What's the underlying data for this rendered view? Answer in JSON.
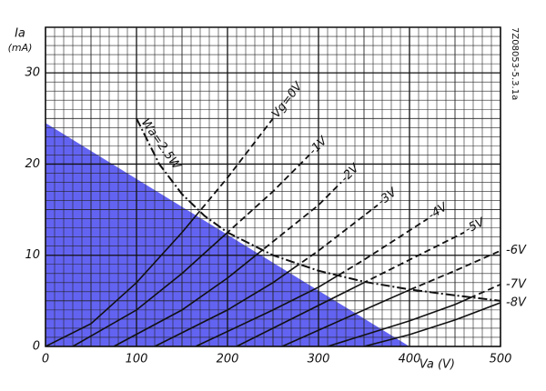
{
  "chart_data": {
    "type": "line",
    "x_label": "Va (V)",
    "y_label": "Ia",
    "y_unit": "(mA)",
    "side_note": "7Z08053-5.3.1a",
    "xlim": [
      0,
      500
    ],
    "ylim": [
      0,
      35
    ],
    "xticks": [
      0,
      100,
      200,
      300,
      400,
      500
    ],
    "yticks": [
      0,
      10,
      20,
      30
    ],
    "grid": true,
    "color": "#111111",
    "series": [
      {
        "name": "Vg=0V",
        "x": [
          0,
          50,
          100,
          150,
          200,
          250
        ],
        "values": [
          0,
          2.5,
          7,
          12.5,
          18.5,
          25
        ]
      },
      {
        "name": "-1V",
        "x": [
          30,
          100,
          150,
          200,
          250,
          290
        ],
        "values": [
          0,
          4,
          8,
          12.5,
          17,
          21
        ]
      },
      {
        "name": "-2V",
        "x": [
          75,
          150,
          200,
          250,
          300,
          325
        ],
        "values": [
          0,
          4,
          7.5,
          11.5,
          15.5,
          18
        ]
      },
      {
        "name": "-3V",
        "x": [
          120,
          200,
          250,
          300,
          365
        ],
        "values": [
          0,
          4,
          7,
          10.5,
          15.5
        ]
      },
      {
        "name": "-4V",
        "x": [
          165,
          250,
          300,
          350,
          420
        ],
        "values": [
          0,
          4,
          6.5,
          9.5,
          14
        ]
      },
      {
        "name": "-5V",
        "x": [
          210,
          300,
          350,
          400,
          460
        ],
        "values": [
          0,
          4.5,
          7,
          9.5,
          12.5
        ]
      },
      {
        "name": "-6V",
        "x": [
          260,
          350,
          400,
          450,
          500
        ],
        "values": [
          0,
          4,
          6.2,
          8.3,
          10.5
        ]
      },
      {
        "name": "-7V",
        "x": [
          310,
          400,
          450,
          500
        ],
        "values": [
          0,
          2.8,
          4.6,
          6.8
        ]
      },
      {
        "name": "-8V",
        "x": [
          350,
          400,
          450,
          500
        ],
        "values": [
          0,
          1.3,
          2.9,
          4.8
        ]
      }
    ],
    "dissipation": {
      "name": "Wa=2.5W",
      "x": [
        100,
        125,
        150,
        175,
        200,
        250,
        300,
        350,
        400,
        450,
        500
      ],
      "values": [
        25,
        20,
        16.7,
        14.3,
        12.5,
        10,
        8.3,
        7.1,
        6.25,
        5.6,
        5
      ]
    },
    "shaded_region": {
      "color": "#4848f0",
      "x": [
        0,
        0,
        400
      ],
      "values": [
        0,
        24.5,
        0
      ]
    }
  }
}
